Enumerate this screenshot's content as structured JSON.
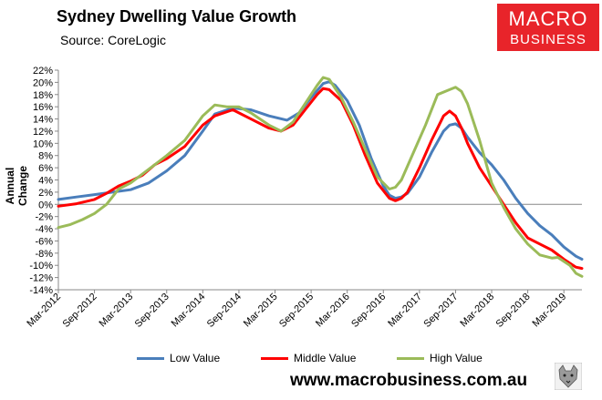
{
  "header": {
    "title": "Sydney Dwelling Value Growth",
    "source": "Source: CoreLogic",
    "logo_line1": "MACRO",
    "logo_line2": "BUSINESS"
  },
  "footer": {
    "url": "www.macrobusiness.com.au"
  },
  "colors": {
    "low": "#4a7ebb",
    "middle": "#ff0000",
    "high": "#9bbb59",
    "logo_bg": "#e8242a"
  },
  "chart_data": {
    "type": "line",
    "title": "Sydney Dwelling Value Growth",
    "xlabel": "",
    "ylabel": "Annual Change",
    "ylim": [
      -14,
      22
    ],
    "ytick_step": 2,
    "yticks": [
      "-14%",
      "-12%",
      "-10%",
      "-8%",
      "-6%",
      "-4%",
      "-2%",
      "0%",
      "2%",
      "4%",
      "6%",
      "8%",
      "10%",
      "12%",
      "14%",
      "16%",
      "18%",
      "20%",
      "22%"
    ],
    "x_tick_labels": [
      "Mar-2012",
      "Sep-2012",
      "Mar-2013",
      "Sep-2013",
      "Mar-2014",
      "Sep-2014",
      "Mar-2015",
      "Sep-2015",
      "Mar-2016",
      "Sep-2016",
      "Mar-2017",
      "Sep-2017",
      "Mar-2018",
      "Sep-2018",
      "Mar-2019"
    ],
    "x_start": "Mar-2012",
    "x_end": "Jun-2019",
    "legend_position": "bottom",
    "series": [
      {
        "name": "Low Value",
        "color_key": "low",
        "values": [
          [
            0,
            0.8
          ],
          [
            3,
            1.2
          ],
          [
            6,
            1.6
          ],
          [
            9,
            2.0
          ],
          [
            12,
            2.4
          ],
          [
            15,
            3.5
          ],
          [
            18,
            5.5
          ],
          [
            21,
            8.0
          ],
          [
            24,
            12.0
          ],
          [
            26,
            14.8
          ],
          [
            29,
            15.8
          ],
          [
            32,
            15.5
          ],
          [
            35,
            14.5
          ],
          [
            38,
            13.8
          ],
          [
            40,
            15.0
          ],
          [
            42,
            17.5
          ],
          [
            44,
            19.8
          ],
          [
            45,
            20.1
          ],
          [
            46,
            19.5
          ],
          [
            48,
            17.0
          ],
          [
            50,
            13.0
          ],
          [
            52,
            7.5
          ],
          [
            54,
            3.0
          ],
          [
            55,
            1.5
          ],
          [
            56,
            1.0
          ],
          [
            57,
            1.2
          ],
          [
            58,
            1.8
          ],
          [
            60,
            4.5
          ],
          [
            62,
            8.5
          ],
          [
            64,
            12.0
          ],
          [
            65,
            13.0
          ],
          [
            66,
            13.2
          ],
          [
            67,
            12.5
          ],
          [
            68,
            11.0
          ],
          [
            70,
            8.5
          ],
          [
            72,
            6.5
          ],
          [
            74,
            4.0
          ],
          [
            76,
            1.0
          ],
          [
            78,
            -1.5
          ],
          [
            80,
            -3.5
          ],
          [
            82,
            -5.0
          ],
          [
            84,
            -7.0
          ],
          [
            86,
            -8.5
          ],
          [
            87,
            -9.0
          ]
        ]
      },
      {
        "name": "Middle Value",
        "color_key": "middle",
        "values": [
          [
            0,
            -0.3
          ],
          [
            3,
            0.1
          ],
          [
            6,
            0.8
          ],
          [
            8,
            1.8
          ],
          [
            10,
            3.0
          ],
          [
            12,
            3.8
          ],
          [
            14,
            4.8
          ],
          [
            16,
            6.5
          ],
          [
            18,
            7.5
          ],
          [
            21,
            9.5
          ],
          [
            24,
            13.0
          ],
          [
            26,
            14.5
          ],
          [
            29,
            15.5
          ],
          [
            32,
            14.0
          ],
          [
            35,
            12.5
          ],
          [
            37,
            12.0
          ],
          [
            39,
            13.0
          ],
          [
            41,
            15.5
          ],
          [
            43,
            18.0
          ],
          [
            44,
            19.0
          ],
          [
            45,
            18.8
          ],
          [
            47,
            17.0
          ],
          [
            49,
            13.0
          ],
          [
            51,
            8.0
          ],
          [
            53,
            3.5
          ],
          [
            55,
            1.0
          ],
          [
            56,
            0.6
          ],
          [
            57,
            1.0
          ],
          [
            58,
            2.0
          ],
          [
            60,
            6.0
          ],
          [
            62,
            10.5
          ],
          [
            64,
            14.5
          ],
          [
            65,
            15.3
          ],
          [
            66,
            14.5
          ],
          [
            67,
            12.5
          ],
          [
            68,
            10.0
          ],
          [
            70,
            6.0
          ],
          [
            72,
            3.0
          ],
          [
            74,
            0.0
          ],
          [
            76,
            -3.0
          ],
          [
            78,
            -5.5
          ],
          [
            80,
            -6.5
          ],
          [
            82,
            -7.5
          ],
          [
            84,
            -9.0
          ],
          [
            86,
            -10.3
          ],
          [
            87,
            -10.5
          ]
        ]
      },
      {
        "name": "High Value",
        "color_key": "high",
        "values": [
          [
            0,
            -3.8
          ],
          [
            2,
            -3.3
          ],
          [
            4,
            -2.5
          ],
          [
            6,
            -1.5
          ],
          [
            8,
            0.0
          ],
          [
            10,
            2.5
          ],
          [
            12,
            3.5
          ],
          [
            14,
            5.0
          ],
          [
            16,
            6.5
          ],
          [
            18,
            8.0
          ],
          [
            21,
            10.5
          ],
          [
            24,
            14.5
          ],
          [
            26,
            16.3
          ],
          [
            28,
            16.0
          ],
          [
            30,
            16.0
          ],
          [
            32,
            15.0
          ],
          [
            35,
            13.0
          ],
          [
            37,
            12.0
          ],
          [
            39,
            13.5
          ],
          [
            41,
            16.5
          ],
          [
            43,
            19.5
          ],
          [
            44,
            20.8
          ],
          [
            45,
            20.5
          ],
          [
            47,
            17.5
          ],
          [
            49,
            13.5
          ],
          [
            51,
            9.0
          ],
          [
            53,
            4.5
          ],
          [
            55,
            2.5
          ],
          [
            56,
            2.8
          ],
          [
            57,
            4.0
          ],
          [
            59,
            8.5
          ],
          [
            61,
            13.0
          ],
          [
            63,
            18.0
          ],
          [
            65,
            18.8
          ],
          [
            66,
            19.2
          ],
          [
            67,
            18.5
          ],
          [
            68,
            16.5
          ],
          [
            70,
            10.5
          ],
          [
            72,
            3.5
          ],
          [
            74,
            -0.5
          ],
          [
            76,
            -4.0
          ],
          [
            78,
            -6.5
          ],
          [
            80,
            -8.3
          ],
          [
            82,
            -8.8
          ],
          [
            83,
            -8.7
          ],
          [
            85,
            -10.0
          ],
          [
            86,
            -11.3
          ],
          [
            87,
            -11.8
          ]
        ]
      }
    ]
  }
}
